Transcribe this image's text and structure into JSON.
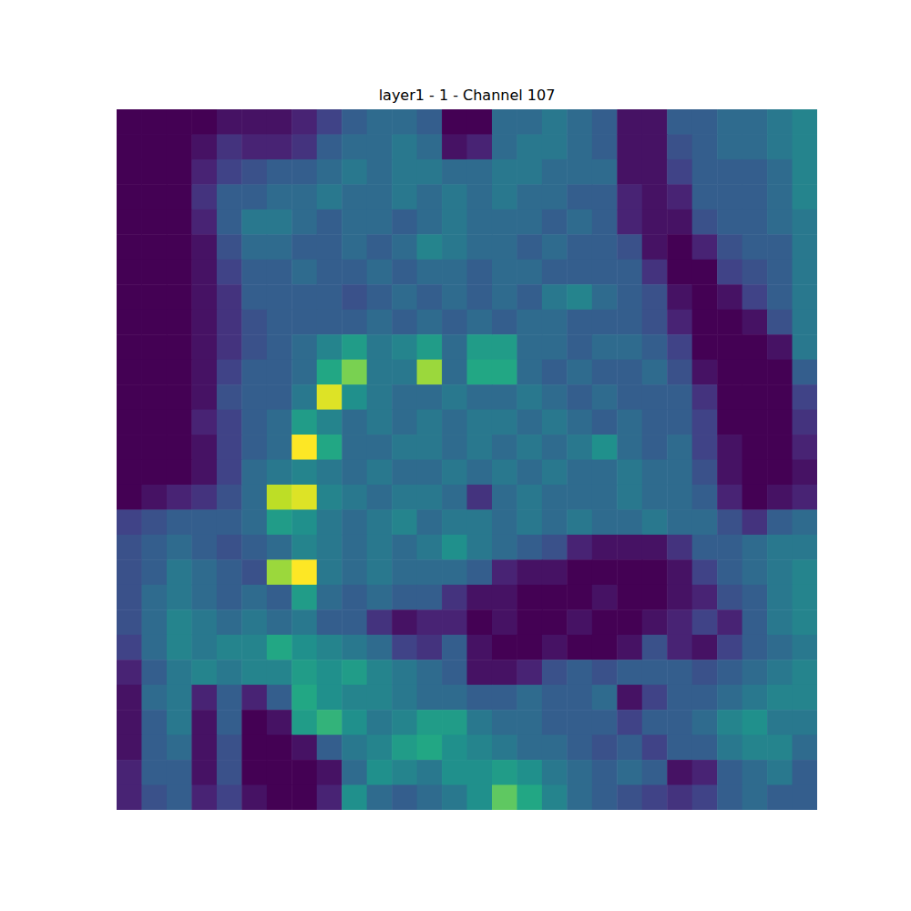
{
  "chart_data": {
    "type": "heatmap",
    "title": "layer1 - 1 - Channel 107",
    "color": "viridis",
    "tick_labels": false,
    "cells": [
      [
        0,
        0,
        0,
        0,
        0.05,
        0.05,
        0.05,
        0.1,
        0.2,
        0.3,
        0.35,
        0.35,
        0.3,
        0,
        0,
        0.35,
        0.35,
        0.4,
        0.35,
        0.3,
        0.05,
        0.05,
        0.3,
        0.3,
        0.35,
        0.35,
        0.4,
        0.45
      ],
      [
        0,
        0,
        0,
        0.05,
        0.15,
        0.1,
        0.1,
        0.15,
        0.3,
        0.35,
        0.35,
        0.4,
        0.35,
        0.05,
        0.1,
        0.35,
        0.4,
        0.4,
        0.35,
        0.3,
        0.05,
        0.05,
        0.25,
        0.3,
        0.35,
        0.35,
        0.4,
        0.45
      ],
      [
        0,
        0,
        0,
        0.1,
        0.2,
        0.25,
        0.3,
        0.3,
        0.35,
        0.4,
        0.35,
        0.4,
        0.4,
        0.35,
        0.35,
        0.4,
        0.4,
        0.35,
        0.35,
        0.35,
        0.05,
        0.05,
        0.2,
        0.3,
        0.3,
        0.3,
        0.35,
        0.45
      ],
      [
        0,
        0,
        0,
        0.15,
        0.3,
        0.3,
        0.35,
        0.35,
        0.4,
        0.35,
        0.35,
        0.4,
        0.35,
        0.4,
        0.35,
        0.4,
        0.35,
        0.35,
        0.3,
        0.3,
        0.1,
        0.05,
        0.1,
        0.3,
        0.3,
        0.3,
        0.35,
        0.45
      ],
      [
        0,
        0,
        0,
        0.1,
        0.3,
        0.4,
        0.4,
        0.35,
        0.3,
        0.35,
        0.35,
        0.3,
        0.35,
        0.4,
        0.35,
        0.35,
        0.35,
        0.3,
        0.35,
        0.3,
        0.1,
        0.05,
        0.05,
        0.25,
        0.3,
        0.3,
        0.35,
        0.4
      ],
      [
        0,
        0,
        0,
        0.05,
        0.25,
        0.35,
        0.35,
        0.3,
        0.3,
        0.35,
        0.3,
        0.35,
        0.45,
        0.4,
        0.35,
        0.35,
        0.3,
        0.35,
        0.3,
        0.3,
        0.25,
        0.05,
        0,
        0.1,
        0.25,
        0.3,
        0.3,
        0.4
      ],
      [
        0,
        0,
        0,
        0.05,
        0.2,
        0.3,
        0.3,
        0.35,
        0.3,
        0.3,
        0.35,
        0.3,
        0.35,
        0.35,
        0.3,
        0.35,
        0.35,
        0.3,
        0.3,
        0.3,
        0.3,
        0.15,
        0,
        0,
        0.2,
        0.25,
        0.3,
        0.4
      ],
      [
        0,
        0,
        0,
        0.05,
        0.15,
        0.3,
        0.3,
        0.3,
        0.3,
        0.25,
        0.3,
        0.35,
        0.3,
        0.35,
        0.3,
        0.35,
        0.3,
        0.4,
        0.45,
        0.35,
        0.3,
        0.25,
        0.05,
        0,
        0.05,
        0.2,
        0.3,
        0.4
      ],
      [
        0,
        0,
        0,
        0.05,
        0.15,
        0.25,
        0.3,
        0.3,
        0.3,
        0.3,
        0.35,
        0.3,
        0.35,
        0.3,
        0.35,
        0.3,
        0.35,
        0.35,
        0.3,
        0.3,
        0.3,
        0.25,
        0.1,
        0,
        0,
        0.05,
        0.25,
        0.4
      ],
      [
        0,
        0,
        0,
        0.05,
        0.15,
        0.25,
        0.3,
        0.35,
        0.45,
        0.55,
        0.4,
        0.45,
        0.55,
        0.35,
        0.55,
        0.55,
        0.35,
        0.35,
        0.3,
        0.35,
        0.35,
        0.3,
        0.2,
        0,
        0,
        0,
        0.05,
        0.4
      ],
      [
        0,
        0,
        0,
        0.05,
        0.2,
        0.3,
        0.3,
        0.35,
        0.6,
        0.8,
        0.4,
        0.4,
        0.85,
        0.35,
        0.6,
        0.6,
        0.35,
        0.3,
        0.35,
        0.3,
        0.3,
        0.35,
        0.25,
        0.05,
        0,
        0,
        0,
        0.3
      ],
      [
        0,
        0,
        0,
        0.05,
        0.25,
        0.3,
        0.3,
        0.4,
        0.95,
        0.5,
        0.4,
        0.35,
        0.35,
        0.4,
        0.35,
        0.35,
        0.4,
        0.35,
        0.3,
        0.35,
        0.3,
        0.3,
        0.3,
        0.15,
        0,
        0,
        0,
        0.2
      ],
      [
        0,
        0,
        0,
        0.1,
        0.2,
        0.3,
        0.35,
        0.55,
        0.45,
        0.35,
        0.4,
        0.35,
        0.4,
        0.35,
        0.4,
        0.4,
        0.35,
        0.4,
        0.35,
        0.3,
        0.35,
        0.3,
        0.3,
        0.2,
        0,
        0,
        0,
        0.15
      ],
      [
        0,
        0,
        0,
        0.05,
        0.2,
        0.3,
        0.35,
        1.0,
        0.6,
        0.35,
        0.35,
        0.4,
        0.4,
        0.35,
        0.4,
        0.35,
        0.4,
        0.35,
        0.4,
        0.5,
        0.35,
        0.3,
        0.35,
        0.2,
        0.05,
        0,
        0,
        0.1
      ],
      [
        0,
        0,
        0,
        0.05,
        0.2,
        0.35,
        0.4,
        0.45,
        0.4,
        0.35,
        0.4,
        0.35,
        0.35,
        0.4,
        0.35,
        0.4,
        0.35,
        0.4,
        0.35,
        0.35,
        0.4,
        0.35,
        0.35,
        0.25,
        0.05,
        0,
        0,
        0.05
      ],
      [
        0,
        0.05,
        0.1,
        0.15,
        0.25,
        0.35,
        0.9,
        0.95,
        0.45,
        0.4,
        0.35,
        0.4,
        0.4,
        0.35,
        0.15,
        0.35,
        0.4,
        0.35,
        0.35,
        0.35,
        0.4,
        0.35,
        0.35,
        0.3,
        0.1,
        0,
        0.05,
        0.1
      ],
      [
        0.2,
        0.25,
        0.3,
        0.3,
        0.3,
        0.35,
        0.55,
        0.5,
        0.4,
        0.35,
        0.4,
        0.45,
        0.35,
        0.4,
        0.4,
        0.35,
        0.4,
        0.35,
        0.4,
        0.35,
        0.35,
        0.4,
        0.35,
        0.35,
        0.25,
        0.15,
        0.3,
        0.35
      ],
      [
        0.25,
        0.3,
        0.35,
        0.3,
        0.25,
        0.3,
        0.35,
        0.45,
        0.4,
        0.35,
        0.4,
        0.35,
        0.4,
        0.5,
        0.4,
        0.35,
        0.3,
        0.25,
        0.1,
        0.05,
        0.05,
        0.05,
        0.15,
        0.3,
        0.3,
        0.35,
        0.4,
        0.4
      ],
      [
        0.25,
        0.3,
        0.4,
        0.35,
        0.3,
        0.25,
        0.85,
        1.0,
        0.4,
        0.35,
        0.4,
        0.35,
        0.35,
        0.35,
        0.3,
        0.1,
        0.05,
        0.05,
        0,
        0,
        0,
        0,
        0.05,
        0.2,
        0.3,
        0.35,
        0.4,
        0.45
      ],
      [
        0.25,
        0.35,
        0.4,
        0.35,
        0.3,
        0.35,
        0.3,
        0.55,
        0.35,
        0.3,
        0.35,
        0.3,
        0.3,
        0.15,
        0.05,
        0.05,
        0,
        0,
        0,
        0.05,
        0,
        0,
        0.05,
        0.1,
        0.25,
        0.3,
        0.4,
        0.45
      ],
      [
        0.25,
        0.35,
        0.45,
        0.4,
        0.35,
        0.4,
        0.35,
        0.4,
        0.3,
        0.3,
        0.15,
        0.05,
        0.1,
        0.1,
        0,
        0.05,
        0,
        0,
        0.05,
        0,
        0,
        0.05,
        0.1,
        0.2,
        0.1,
        0.3,
        0.4,
        0.45
      ],
      [
        0.2,
        0.35,
        0.45,
        0.4,
        0.45,
        0.45,
        0.6,
        0.5,
        0.45,
        0.4,
        0.35,
        0.2,
        0.15,
        0.3,
        0.05,
        0,
        0,
        0.05,
        0,
        0,
        0.05,
        0.25,
        0.1,
        0.05,
        0.2,
        0.3,
        0.35,
        0.4
      ],
      [
        0.1,
        0.3,
        0.4,
        0.45,
        0.4,
        0.45,
        0.45,
        0.55,
        0.5,
        0.55,
        0.45,
        0.4,
        0.35,
        0.3,
        0.05,
        0.05,
        0.1,
        0.25,
        0.3,
        0.25,
        0.3,
        0.3,
        0.3,
        0.25,
        0.3,
        0.35,
        0.4,
        0.45
      ],
      [
        0.05,
        0.35,
        0.4,
        0.1,
        0.3,
        0.1,
        0.3,
        0.6,
        0.5,
        0.45,
        0.45,
        0.4,
        0.35,
        0.35,
        0.3,
        0.3,
        0.35,
        0.3,
        0.3,
        0.35,
        0.05,
        0.2,
        0.3,
        0.3,
        0.35,
        0.4,
        0.45,
        0.45
      ],
      [
        0.05,
        0.3,
        0.4,
        0.05,
        0.3,
        0,
        0.05,
        0.55,
        0.65,
        0.5,
        0.4,
        0.45,
        0.55,
        0.55,
        0.4,
        0.35,
        0.35,
        0.3,
        0.3,
        0.3,
        0.2,
        0.3,
        0.3,
        0.35,
        0.45,
        0.5,
        0.4,
        0.4
      ],
      [
        0.05,
        0.3,
        0.35,
        0.05,
        0.25,
        0,
        0,
        0.05,
        0.3,
        0.4,
        0.45,
        0.55,
        0.6,
        0.5,
        0.45,
        0.4,
        0.35,
        0.35,
        0.3,
        0.25,
        0.3,
        0.2,
        0.3,
        0.3,
        0.4,
        0.45,
        0.45,
        0.35
      ],
      [
        0.1,
        0.3,
        0.3,
        0.05,
        0.25,
        0,
        0,
        0,
        0.05,
        0.35,
        0.5,
        0.45,
        0.4,
        0.5,
        0.5,
        0.55,
        0.5,
        0.4,
        0.35,
        0.3,
        0.35,
        0.3,
        0.05,
        0.1,
        0.3,
        0.35,
        0.4,
        0.3
      ],
      [
        0.1,
        0.25,
        0.3,
        0.1,
        0.2,
        0.05,
        0,
        0,
        0.1,
        0.5,
        0.35,
        0.3,
        0.35,
        0.4,
        0.5,
        0.75,
        0.6,
        0.45,
        0.35,
        0.3,
        0.25,
        0.2,
        0.15,
        0.2,
        0.3,
        0.35,
        0.3,
        0.3
      ]
    ]
  }
}
